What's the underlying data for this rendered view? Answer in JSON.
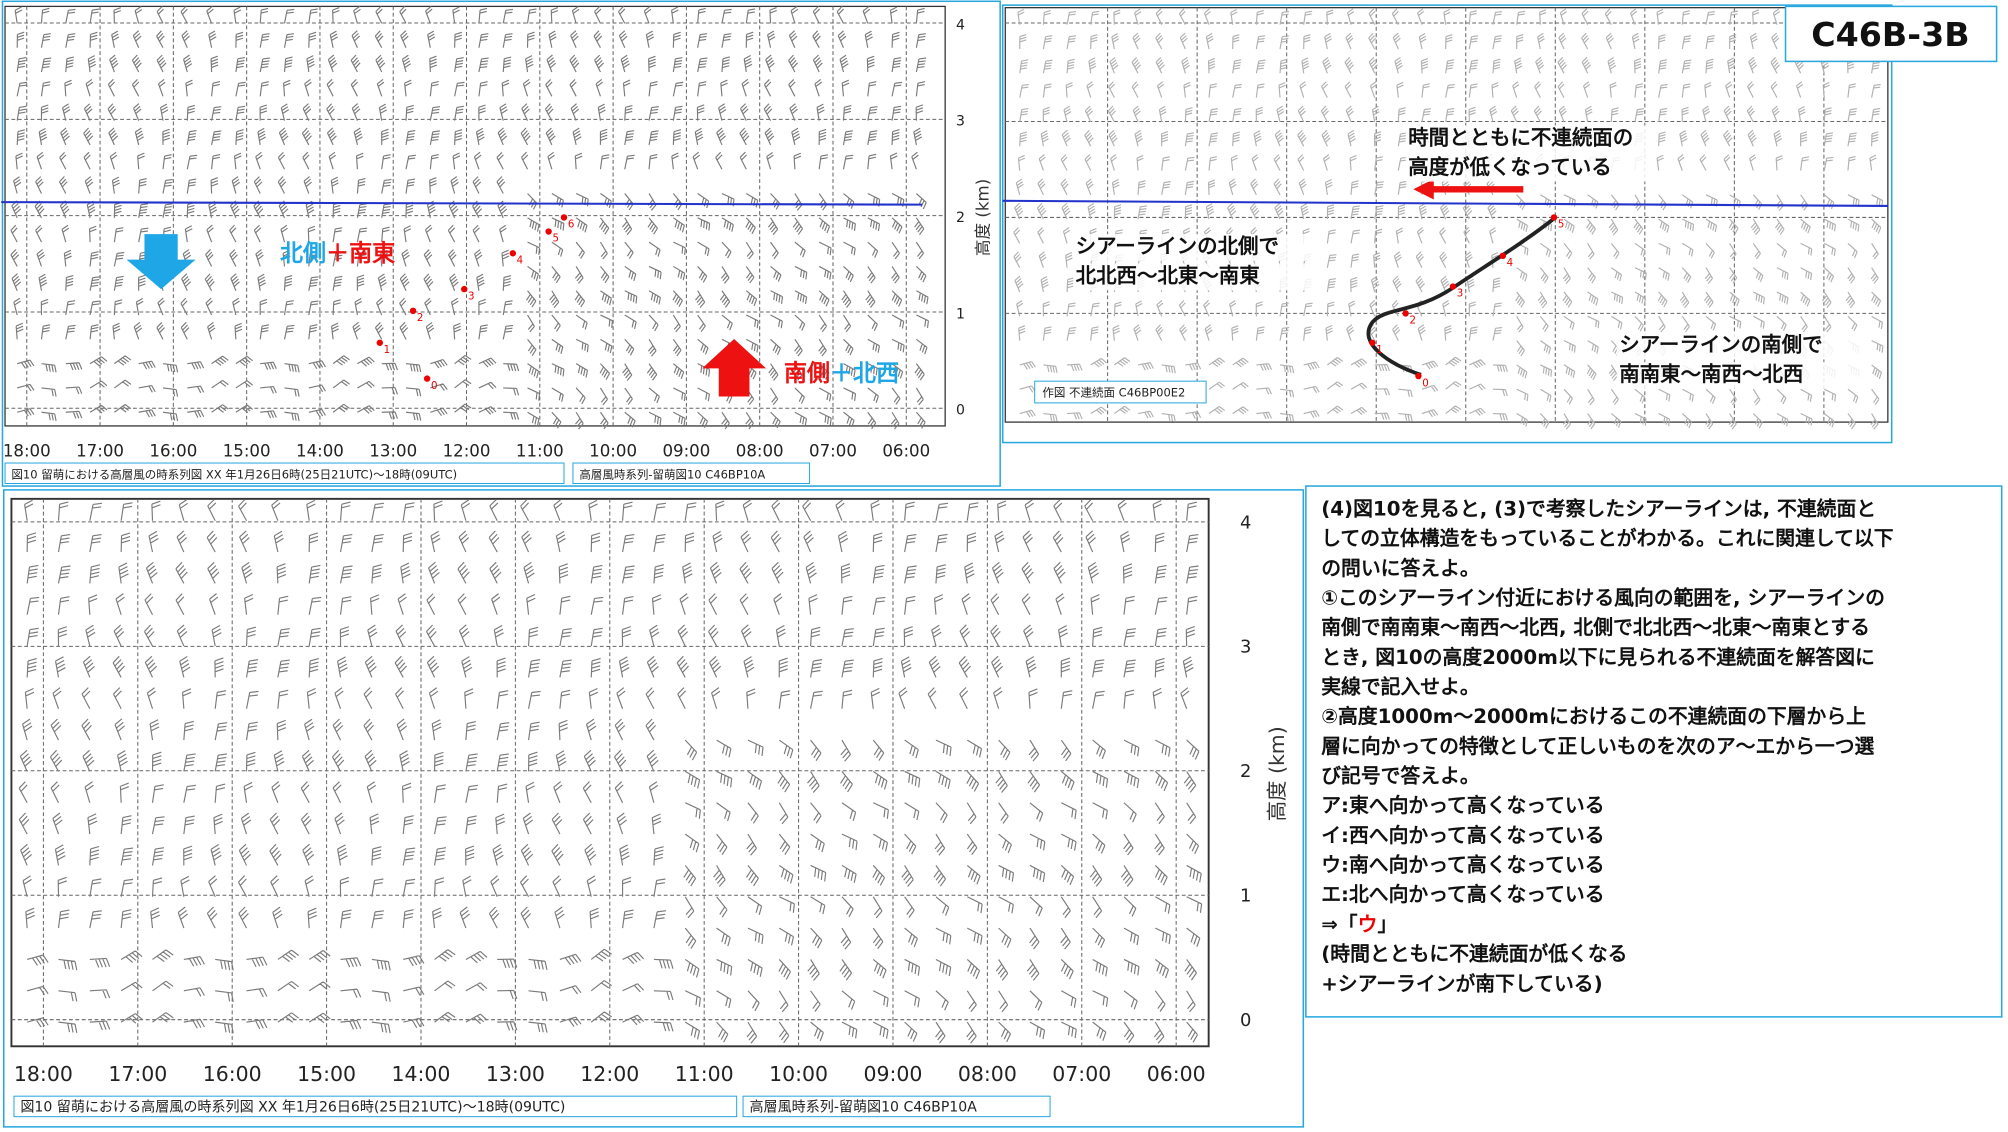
{
  "badge": "C46B-3B",
  "top_left": {
    "times": [
      "18:00",
      "17:00",
      "16:00",
      "15:00",
      "14:00",
      "13:00",
      "12:00",
      "11:00",
      "10:00",
      "09:00",
      "08:00",
      "07:00",
      "06:00"
    ],
    "heights": [
      "4",
      "3",
      "2",
      "1",
      "0"
    ],
    "axis_label": "高度 (km)",
    "north_note": [
      "北側",
      "＋南東"
    ],
    "south_note": [
      "南側",
      "＋北西"
    ],
    "markers": [
      "0",
      "1",
      "2",
      "3",
      "4",
      "5",
      "6"
    ],
    "caption_left": "図10 留萌における高層風の時系列図 XX 年1月26日6時(25日21UTC)～18時(09UTC)",
    "caption_right": "高層風時系列-留萌図10 C46BP10A"
  },
  "top_right": {
    "trend_note": [
      "時間とともに不連続面の",
      "高度が低くなっている"
    ],
    "north_note": [
      "シアーラインの北側で",
      "北北西～北東～南東"
    ],
    "south_note": [
      "シアーラインの南側で",
      "南南東～南西～北西"
    ],
    "markers": [
      "0",
      "1",
      "2",
      "3",
      "4",
      "5"
    ],
    "caption": "作図 不連続面 C46BP00E2"
  },
  "bottom": {
    "times": [
      "18:00",
      "17:00",
      "16:00",
      "15:00",
      "14:00",
      "13:00",
      "12:00",
      "11:00",
      "10:00",
      "09:00",
      "08:00",
      "07:00",
      "06:00"
    ],
    "heights": [
      "4",
      "3",
      "2",
      "1",
      "0"
    ],
    "axis_label": "高度 (km)",
    "caption_left": "図10 留萌における高層風の時系列図 XX 年1月26日6時(25日21UTC)～18時(09UTC)",
    "caption_right": "高層風時系列-留萌図10 C46BP10A"
  },
  "question": {
    "lines": [
      "(4)図10を見ると, (3)で考察したシアーラインは, 不連続面と",
      "しての立体構造をもっていることがわかる。これに関連して以下",
      "の問いに答えよ。",
      "①このシアーライン付近における風向の範囲を, シアーラインの",
      "南側で南南東～南西～北西, 北側で北北西～北東～南東とする",
      "とき, 図10の高度2000m以下に見られる不連続面を解答図に",
      "実線で記入せよ。",
      "②高度1000m～2000mにおけるこの不連続面の下層から上",
      "層に向かっての特徴として正しいものを次のア～エから一つ選",
      "び記号で答えよ。",
      "ア:東へ向かって高くなっている",
      "イ:西へ向かって高くなっている",
      "ウ:南へ向かって高くなっている",
      "エ:北へ向かって高くなっている"
    ],
    "answer": [
      "⇒「",
      "ウ",
      "」"
    ],
    "note": [
      "(時間とともに不連続面が低くなる",
      "+シアーラインが南下している)"
    ]
  }
}
